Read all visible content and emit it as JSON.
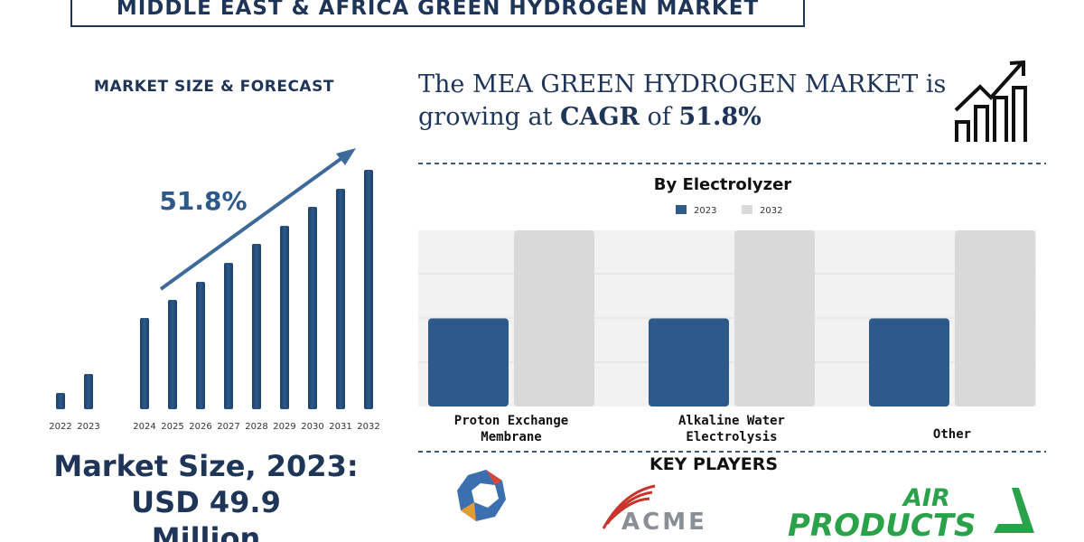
{
  "title": "MIDDLE EAST & AFRICA GREEN HYDROGEN MARKET",
  "forecast_heading": "MARKET SIZE & FORECAST",
  "headline": {
    "line1": "The MEA GREEN HYDROGEN MARKET is",
    "growing": "growing at",
    "cagr_label": "CAGR",
    "of": "of",
    "cagr": "51.8%"
  },
  "market_size": [
    "Market Size, 2023:",
    "USD 49.9",
    "Million"
  ],
  "key_players_heading": "KEY PLAYERS",
  "players": [
    "ACME",
    "AIR",
    "PRODUCTS"
  ],
  "chart_data": [
    {
      "type": "bar",
      "annotation": "51.8%",
      "categories": [
        "2022",
        "2023",
        null,
        "2024",
        "2025",
        "2026",
        "2027",
        "2028",
        "2029",
        "2030",
        "2031",
        "2032"
      ],
      "values": [
        18,
        39,
        null,
        101,
        121,
        141,
        162,
        183,
        203,
        224,
        244,
        265
      ],
      "color": "#2d5a8a",
      "ylim": [
        0,
        280
      ]
    },
    {
      "type": "grouped-bar",
      "title": "By Electrolyzer",
      "categories": [
        "Proton Exchange Membrane",
        "Alkaline Water Electrolysis",
        "Other"
      ],
      "series": [
        {
          "name": "2023",
          "color": "#2d5a8a",
          "values": [
            2,
            2,
            2
          ]
        },
        {
          "name": "2032",
          "color": "#d9d9d9",
          "values": [
            4,
            4,
            4
          ]
        }
      ],
      "ylim": [
        0,
        4
      ]
    }
  ]
}
